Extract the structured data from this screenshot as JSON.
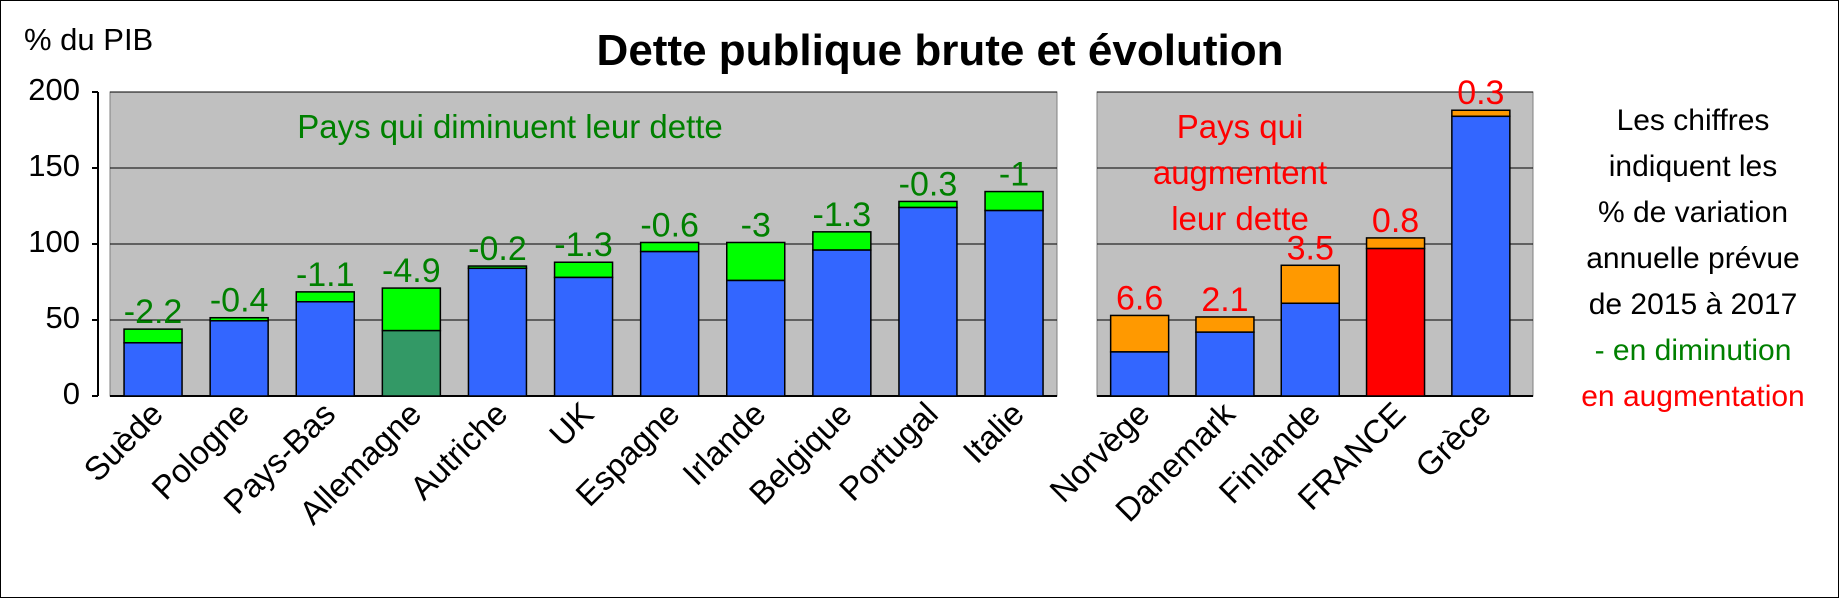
{
  "chart_data": {
    "type": "bar",
    "title": "Dette publique brute et évolution",
    "ylabel": "% du PIB",
    "ylim": [
      0,
      200
    ],
    "yticks": [
      0,
      50,
      100,
      150,
      200
    ],
    "stacked": true,
    "grid": true,
    "panels": [
      {
        "label": "Pays qui diminuent leur dette",
        "label_color": "#008000",
        "delta_color": "#00ff00",
        "annotation_color": "#008000",
        "bars": [
          {
            "category": "Suède",
            "base": 35,
            "change": 9,
            "annotation": "-2.2"
          },
          {
            "category": "Pologne",
            "base": 49.5,
            "change": 2,
            "annotation": "-0.4"
          },
          {
            "category": "Pays-Bas",
            "base": 62,
            "change": 6.5,
            "annotation": "-1.1"
          },
          {
            "category": "Allemagne",
            "base": 43,
            "change": 28,
            "annotation": "-4.9",
            "base_color": "#339966"
          },
          {
            "category": "Autriche",
            "base": 84,
            "change": 1.5,
            "annotation": "-0.2"
          },
          {
            "category": "UK",
            "base": 78,
            "change": 10,
            "annotation": "-1.3"
          },
          {
            "category": "Espagne",
            "base": 95,
            "change": 6,
            "annotation": "-0.6"
          },
          {
            "category": "Irlande",
            "base": 76,
            "change": 25,
            "annotation": "-3"
          },
          {
            "category": "Belgique",
            "base": 96,
            "change": 12,
            "annotation": "-1.3"
          },
          {
            "category": "Portugal",
            "base": 124,
            "change": 4,
            "annotation": "-0.3"
          },
          {
            "category": "Italie",
            "base": 122,
            "change": 12.5,
            "annotation": "-1"
          }
        ]
      },
      {
        "label_lines": [
          "Pays qui augmentent",
          "leur dette"
        ],
        "label_color": "#ff0000",
        "delta_color": "#ff9900",
        "annotation_color": "#ff0000",
        "bars": [
          {
            "category": "Norvège",
            "base": 29,
            "change": 24,
            "annotation": "6.6"
          },
          {
            "category": "Danemark",
            "base": 42,
            "change": 10,
            "annotation": "2.1"
          },
          {
            "category": "Finlande",
            "base": 61,
            "change": 25,
            "annotation": "3.5"
          },
          {
            "category": "FRANCE",
            "base": 97,
            "change": 7,
            "annotation": "0.8",
            "base_color": "#ff0000"
          },
          {
            "category": "Grèce",
            "base": 184,
            "change": 4,
            "annotation": "0.3"
          }
        ]
      }
    ],
    "base_color": "#3366ff",
    "plot_bg": "#c0c0c0",
    "note_lines": [
      {
        "text": "Les chiffres",
        "color": "#000000"
      },
      {
        "text": "indiquent les",
        "color": "#000000"
      },
      {
        "text": "% de variation",
        "color": "#000000"
      },
      {
        "text": "annuelle prévue",
        "color": "#000000"
      },
      {
        "text": "de 2015 à 2017",
        "color": "#000000"
      },
      {
        "text": "- en diminution",
        "color": "#008000"
      },
      {
        "text": "en augmentation",
        "color": "#ff0000"
      }
    ]
  }
}
